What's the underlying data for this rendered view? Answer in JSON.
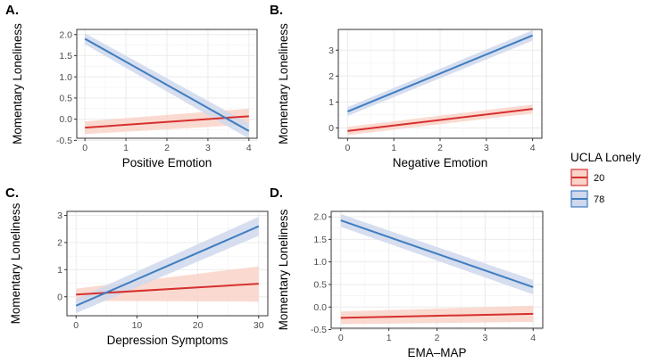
{
  "legend": {
    "title": "UCLA Lonely",
    "entries": [
      {
        "label": "20",
        "line": "#D7302F",
        "fill": "#F9D4C8"
      },
      {
        "label": "78",
        "line": "#3F7DC0",
        "fill": "#CFD8EC"
      }
    ]
  },
  "chart_data": [
    {
      "type": "line",
      "panel": "A.",
      "xlabel": "Positive Emotion",
      "ylabel": "Momentary Loneliness",
      "xlim": [
        -0.2,
        4.2
      ],
      "ylim": [
        -0.45,
        2.12
      ],
      "xticks": [
        0,
        1,
        2,
        3,
        4
      ],
      "xtick_labels": [
        "0",
        "1",
        "2",
        "3",
        "4"
      ],
      "yticks": [
        -0.5,
        0.0,
        0.5,
        1.0,
        1.5,
        2.0
      ],
      "ytick_labels": [
        "-0.5",
        "0.0",
        "0.5",
        "1.0",
        "1.5",
        "2.0"
      ],
      "series": [
        {
          "name": "20",
          "x": [
            0,
            4
          ],
          "y": [
            -0.2,
            0.07
          ],
          "lower": [
            -0.35,
            -0.13
          ],
          "upper": [
            -0.05,
            0.25
          ]
        },
        {
          "name": "78",
          "x": [
            0,
            4
          ],
          "y": [
            1.9,
            -0.28
          ],
          "lower": [
            1.77,
            -0.46
          ],
          "upper": [
            2.03,
            -0.1
          ]
        }
      ]
    },
    {
      "type": "line",
      "panel": "B.",
      "xlabel": "Negative Emotion",
      "ylabel": "Momentary Loneliness",
      "xlim": [
        -0.2,
        4.2
      ],
      "ylim": [
        -0.4,
        3.8
      ],
      "xticks": [
        0,
        1,
        2,
        3,
        4
      ],
      "xtick_labels": [
        "0",
        "1",
        "2",
        "3",
        "4"
      ],
      "yticks": [
        0,
        1,
        2,
        3
      ],
      "ytick_labels": [
        "0",
        "1",
        "2",
        "3"
      ],
      "series": [
        {
          "name": "20",
          "x": [
            0,
            4
          ],
          "y": [
            -0.12,
            0.73
          ],
          "lower": [
            -0.28,
            0.56
          ],
          "upper": [
            0.04,
            0.9
          ]
        },
        {
          "name": "78",
          "x": [
            0,
            4
          ],
          "y": [
            0.63,
            3.57
          ],
          "lower": [
            0.46,
            3.37
          ],
          "upper": [
            0.8,
            3.77
          ]
        }
      ]
    },
    {
      "type": "line",
      "panel": "C.",
      "xlabel": "Depression Symptoms",
      "ylabel": "Momentary Loneliness",
      "xlim": [
        -1.5,
        31.5
      ],
      "ylim": [
        -0.7,
        3.15
      ],
      "xticks": [
        0,
        10,
        20,
        30
      ],
      "xtick_labels": [
        "0",
        "10",
        "20",
        "30"
      ],
      "yticks": [
        0,
        1,
        2,
        3
      ],
      "ytick_labels": [
        "0",
        "1",
        "2",
        "3"
      ],
      "series": [
        {
          "name": "20",
          "x": [
            0,
            30
          ],
          "y": [
            0.08,
            0.48
          ],
          "lower": [
            -0.15,
            -0.18
          ],
          "upper": [
            0.3,
            1.12
          ]
        },
        {
          "name": "78",
          "x": [
            0,
            30
          ],
          "y": [
            -0.33,
            2.6
          ],
          "lower": [
            -0.6,
            2.25
          ],
          "upper": [
            -0.08,
            2.95
          ]
        }
      ]
    },
    {
      "type": "line",
      "panel": "D.",
      "xlabel": "EMA–MAP",
      "ylabel": "Momentary Loneliness",
      "xlim": [
        -0.2,
        4.2
      ],
      "ylim": [
        -0.47,
        2.12
      ],
      "xticks": [
        0,
        1,
        2,
        3,
        4
      ],
      "xtick_labels": [
        "0",
        "1",
        "2",
        "3",
        "4"
      ],
      "yticks": [
        -0.5,
        0.0,
        0.5,
        1.0,
        1.5,
        2.0
      ],
      "ytick_labels": [
        "-0.5",
        "0.0",
        "0.5",
        "1.0",
        "1.5",
        "2.0"
      ],
      "series": [
        {
          "name": "20",
          "x": [
            0,
            4
          ],
          "y": [
            -0.24,
            -0.15
          ],
          "lower": [
            -0.38,
            -0.33
          ],
          "upper": [
            -0.1,
            0.03
          ]
        },
        {
          "name": "78",
          "x": [
            0,
            4
          ],
          "y": [
            1.92,
            0.44
          ],
          "lower": [
            1.78,
            0.28
          ],
          "upper": [
            2.06,
            0.6
          ]
        }
      ]
    }
  ]
}
